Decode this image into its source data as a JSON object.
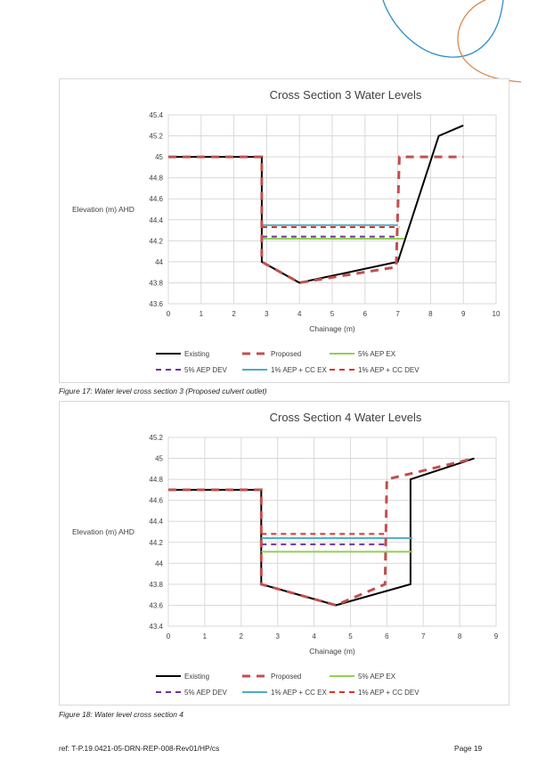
{
  "colors": {
    "existing": "#000000",
    "proposed": "#c0504d",
    "aep5_ex": "#92d050",
    "aep5_dev": "#7030a0",
    "aep1_cc_ex": "#4bacc6",
    "aep1_cc_dev": "#e0302a",
    "decor_blue": "#2e8fc7",
    "decor_orange": "#d98a4f"
  },
  "captions": {
    "figure17": "Figure 17: Water level cross section 3 (Proposed culvert outlet)",
    "figure18": "Figure 18: Water level cross section 4"
  },
  "footer": {
    "ref": "ref: T-P.19.0421-05-DRN-REP-008-Rev01/HP/cs",
    "page": "Page 19"
  },
  "chart_data": [
    {
      "type": "line",
      "title": "Cross Section 3 Water Levels",
      "xlabel": "Chainage (m)",
      "ylabel": "Elevation (m) AHD",
      "xlim": [
        0,
        10
      ],
      "ylim": [
        43.6,
        45.4
      ],
      "x_ticks": [
        "0",
        "1",
        "2",
        "3",
        "4",
        "5",
        "6",
        "7",
        "8",
        "9",
        "10"
      ],
      "y_ticks": [
        "43.6",
        "43.8",
        "44",
        "44.2",
        "44.4",
        "44.6",
        "44.8",
        "45",
        "45.2",
        "45.4"
      ],
      "grid": true,
      "legend_position": "bottom",
      "series": [
        {
          "name": "Existing",
          "color_key": "existing",
          "style": "solid",
          "points": [
            [
              0,
              45.0
            ],
            [
              2.85,
              45.0
            ],
            [
              2.85,
              44.0
            ],
            [
              4.0,
              43.8
            ],
            [
              7.0,
              44.0
            ],
            [
              8.25,
              45.2
            ],
            [
              9.0,
              45.3
            ]
          ]
        },
        {
          "name": "Proposed",
          "color_key": "proposed",
          "style": "dashed-thick",
          "points": [
            [
              0,
              45.0
            ],
            [
              2.85,
              45.0
            ],
            [
              2.85,
              44.0
            ],
            [
              4.0,
              43.8
            ],
            [
              6.95,
              43.95
            ],
            [
              7.05,
              45.0
            ],
            [
              9.0,
              45.0
            ]
          ]
        },
        {
          "name": "5% AEP EX",
          "color_key": "aep5_ex",
          "style": "solid",
          "points": [
            [
              2.85,
              44.22
            ],
            [
              7.2,
              44.22
            ]
          ]
        },
        {
          "name": "5% AEP DEV",
          "color_key": "aep5_dev",
          "style": "dashed",
          "points": [
            [
              2.85,
              44.24
            ],
            [
              7.0,
              44.24
            ]
          ]
        },
        {
          "name": "1% AEP + CC EX",
          "color_key": "aep1_cc_ex",
          "style": "solid",
          "points": [
            [
              2.85,
              44.35
            ],
            [
              7.0,
              44.35
            ]
          ]
        },
        {
          "name": "1% AEP + CC DEV",
          "color_key": "aep1_cc_dev",
          "style": "dashed",
          "points": [
            [
              2.85,
              44.33
            ],
            [
              7.05,
              44.33
            ]
          ]
        }
      ]
    },
    {
      "type": "line",
      "title": "Cross Section 4 Water Levels",
      "xlabel": "Chainage (m)",
      "ylabel": "Elevation (m) AHD",
      "xlim": [
        0,
        9
      ],
      "ylim": [
        43.4,
        45.2
      ],
      "x_ticks": [
        "0",
        "1",
        "2",
        "3",
        "4",
        "5",
        "6",
        "7",
        "8",
        "9"
      ],
      "y_ticks": [
        "43.4",
        "43.6",
        "43.8",
        "44",
        "44.2",
        "44.4",
        "44.6",
        "44.8",
        "45",
        "45.2"
      ],
      "grid": true,
      "legend_position": "bottom",
      "series": [
        {
          "name": "Existing",
          "color_key": "existing",
          "style": "solid",
          "points": [
            [
              0,
              44.7
            ],
            [
              2.55,
              44.7
            ],
            [
              2.55,
              43.8
            ],
            [
              4.6,
              43.6
            ],
            [
              6.65,
              43.8
            ],
            [
              6.65,
              44.8
            ],
            [
              8.4,
              45.0
            ]
          ]
        },
        {
          "name": "Proposed",
          "color_key": "proposed",
          "style": "dashed-thick",
          "points": [
            [
              0,
              44.7
            ],
            [
              2.55,
              44.7
            ],
            [
              2.55,
              43.8
            ],
            [
              4.6,
              43.6
            ],
            [
              5.95,
              43.8
            ],
            [
              6.0,
              44.8
            ],
            [
              8.4,
              45.0
            ]
          ]
        },
        {
          "name": "5% AEP EX",
          "color_key": "aep5_ex",
          "style": "solid",
          "points": [
            [
              2.55,
              44.11
            ],
            [
              6.7,
              44.11
            ]
          ]
        },
        {
          "name": "5% AEP DEV",
          "color_key": "aep5_dev",
          "style": "dashed",
          "points": [
            [
              2.55,
              44.18
            ],
            [
              6.0,
              44.18
            ]
          ]
        },
        {
          "name": "1% AEP + CC EX",
          "color_key": "aep1_cc_ex",
          "style": "solid",
          "points": [
            [
              2.55,
              44.24
            ],
            [
              6.7,
              44.24
            ]
          ]
        },
        {
          "name": "1% AEP + CC DEV",
          "color_key": "aep1_cc_dev",
          "style": "dashed",
          "points": [
            [
              2.55,
              44.28
            ],
            [
              6.0,
              44.28
            ]
          ]
        }
      ]
    }
  ]
}
